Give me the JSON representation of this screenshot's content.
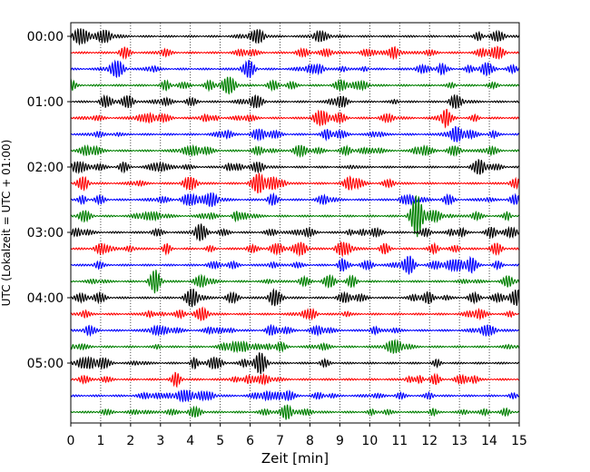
{
  "chart_data": {
    "type": "line",
    "title": "",
    "xlabel": "Zeit  [min]",
    "ylabel": "UTC (Lokalzeit = UTC + 01:00)",
    "xlim": [
      0,
      15
    ],
    "x_ticks": [
      0,
      1,
      2,
      3,
      4,
      5,
      6,
      7,
      8,
      9,
      10,
      11,
      12,
      13,
      14,
      15
    ],
    "y_tick_labels": [
      "00:00",
      "01:00",
      "02:00",
      "03:00",
      "04:00",
      "05:00"
    ],
    "y_tick_rows": [
      0,
      4,
      8,
      12,
      16,
      20
    ],
    "trace_count": 24,
    "trace_minutes": 15,
    "trace_colors": [
      "#000000",
      "#ff0000",
      "#0000ff",
      "#008000"
    ],
    "grid": "vertical-dotted",
    "legend": "none"
  }
}
